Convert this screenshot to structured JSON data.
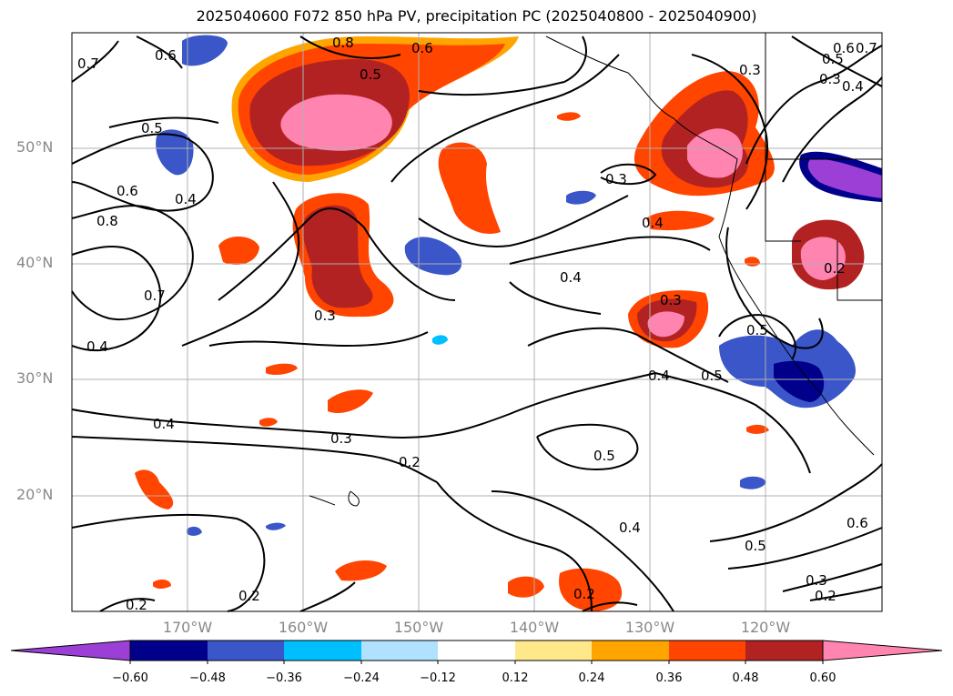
{
  "title": "2025040600 F072 850 hPa PV, precipitation PC (2025040800 - 2025040900)",
  "lat_labels": [
    "50°N",
    "40°N",
    "30°N",
    "20°N"
  ],
  "lon_labels": [
    "170°W",
    "160°W",
    "150°W",
    "140°W",
    "130°W",
    "120°W"
  ],
  "colorbar": {
    "ticks": [
      "−0.60",
      "−0.48",
      "−0.36",
      "−0.24",
      "−0.12",
      "0.12",
      "0.24",
      "0.36",
      "0.48",
      "0.60"
    ],
    "colors": [
      "#9b3fd6",
      "#00008b",
      "#3a56c8",
      "#00bfff",
      "#b0e2ff",
      "#ffffff",
      "#ffe88a",
      "#ffa500",
      "#ff4500",
      "#b22222",
      "#ff85b0"
    ]
  },
  "contour_labels": [
    "0.7",
    "0.6",
    "0.8",
    "0.6",
    "0.5",
    "0.5",
    "0.6",
    "0.4",
    "0.8",
    "0.7",
    "0.3",
    "0.4",
    "0.4",
    "0.3",
    "0.2",
    "0.2",
    "0.2",
    "0.2",
    "0.3",
    "0.4",
    "0.4",
    "0.3",
    "0.3",
    "0.5",
    "0.4",
    "0.5",
    "0.5",
    "0.4",
    "0.5",
    "0.3",
    "0.2",
    "0.6",
    "0.2",
    "0.6",
    "0.5",
    "0.7",
    "0.3",
    "0.4"
  ]
}
